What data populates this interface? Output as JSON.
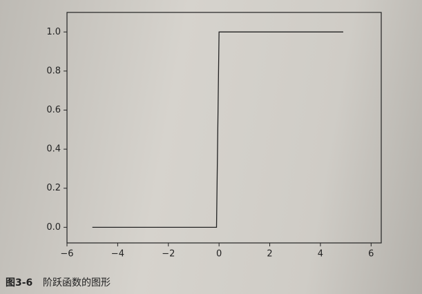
{
  "chart_data": {
    "type": "line",
    "x": [
      -5,
      -0.1,
      0,
      4.9
    ],
    "series": [
      {
        "color": "#222222",
        "values": [
          0,
          0,
          1,
          1
        ]
      }
    ],
    "xlim": [
      -6,
      6.4
    ],
    "ylim": [
      -0.08,
      1.1
    ],
    "xticks": [
      {
        "value": -6,
        "label": "−6"
      },
      {
        "value": -4,
        "label": "−4"
      },
      {
        "value": -2,
        "label": "−2"
      },
      0,
      2,
      4,
      6
    ],
    "yticks": [
      {
        "value": 0,
        "label": "0.0"
      },
      {
        "value": 0.2,
        "label": "0.2"
      },
      {
        "value": 0.4,
        "label": "0.4"
      },
      {
        "value": 0.6,
        "label": "0.6"
      },
      {
        "value": 0.8,
        "label": "0.8"
      },
      {
        "value": 1,
        "label": "1.0"
      }
    ]
  },
  "caption": {
    "label": "图3-6",
    "title": "阶跃函数的图形"
  }
}
